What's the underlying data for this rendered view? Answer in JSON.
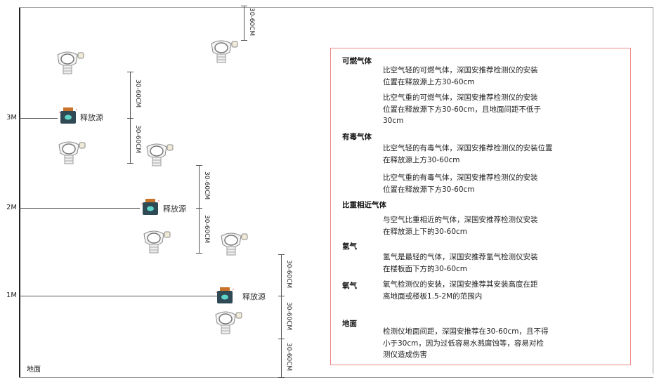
{
  "levels": {
    "m3": "3M",
    "m2": "2M",
    "m1": "1M",
    "ground": "地面"
  },
  "source_label": "释放源",
  "dimension_label": "30-60CM",
  "colors": {
    "border": "#e88888",
    "source_body": "#2f4a55",
    "source_lid": "#c9742a",
    "source_face": "#5fd3c7"
  },
  "notes": {
    "combustible": {
      "heading": "可燃气体",
      "light": "比空气轻的可燃气体，深国安推荐检测仪的安装\n位置在释放源上方30-60cm",
      "heavy": "比空气重的可燃气体，深国安推荐检测仪的安装\n位置在释放源下方30-60cm，且地面间距不低于\n30cm"
    },
    "toxic": {
      "heading": "有毒气体",
      "light": "比空气轻的有毒气体，深国安推荐检测仪的安装位置\n在释放源上方30-60cm",
      "heavy": "比空气重的有毒气体，深国安推荐检测仪的安装\n位置在释放源下方30-60cm"
    },
    "similar": {
      "heading": "比重相近气体",
      "text": "与空气比重相近的气体，深国安推荐检测仪安装\n在释放源上下的30-60cm"
    },
    "hydrogen": {
      "heading": "氢气",
      "text": "氢气是最轻的气体，深国安推荐氢气检测仪安装\n在楼板面下方的30-60cm"
    },
    "oxygen": {
      "heading": "氧气",
      "text": "氧气检测仪的安装，深国安推荐其安装高度在距\n离地面或楼板1.5-2M的范围内"
    },
    "ground": {
      "heading": "地面",
      "text": "检测仪地面间距，深国安推荐在30-60cm，且不得\n小于30cm，因为过低容易水溅腐蚀等，容易对检\n测仪造成伤害"
    }
  }
}
